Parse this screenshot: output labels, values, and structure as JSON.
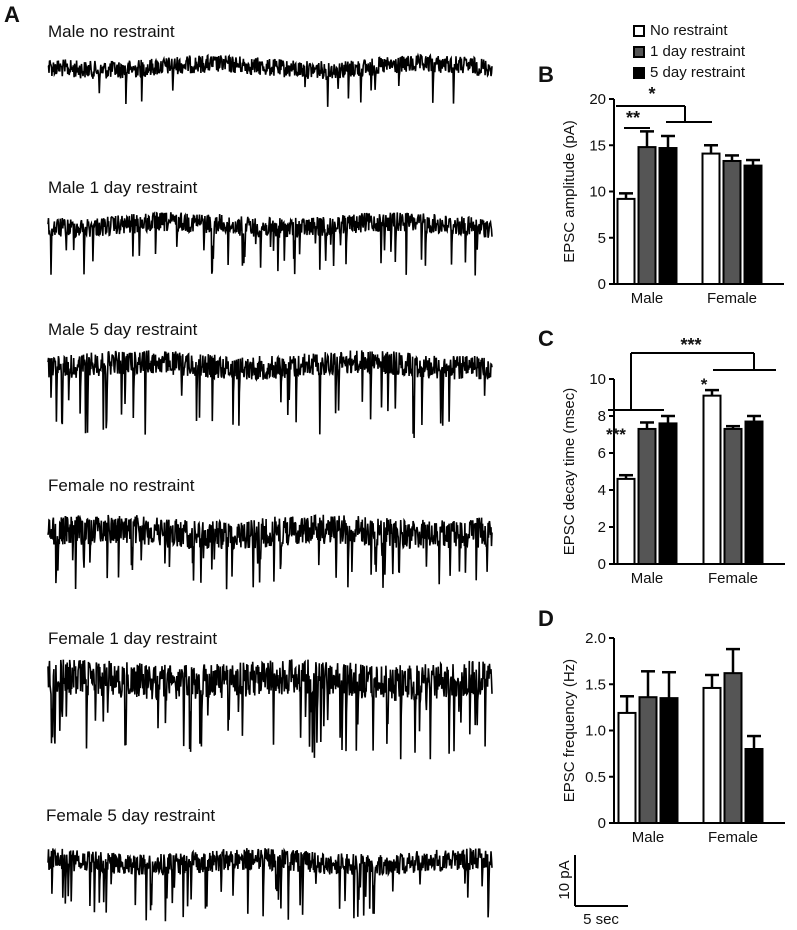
{
  "panels": {
    "a": "A",
    "b": "B",
    "c": "C",
    "d": "D"
  },
  "traces": [
    {
      "label": "Male no restraint"
    },
    {
      "label": "Male 1 day restraint"
    },
    {
      "label": "Male 5 day restraint"
    },
    {
      "label": "Female no restraint"
    },
    {
      "label": "Female 1 day restraint"
    },
    {
      "label": "Female 5 day restraint"
    }
  ],
  "legend": [
    {
      "label": "No restraint",
      "color": "#ffffff"
    },
    {
      "label": "1 day restraint",
      "color": "#555555"
    },
    {
      "label": "5 day restraint",
      "color": "#000000"
    }
  ],
  "scale_bar": {
    "y_label": "10 pA",
    "x_label": "5 sec"
  },
  "chart_data": [
    {
      "panel": "B",
      "type": "bar",
      "categories": [
        "Male",
        "Female"
      ],
      "ylabel": "EPSC amplitude (pA)",
      "ylim": [
        0,
        20
      ],
      "yticks": [
        0,
        5,
        10,
        15,
        20
      ],
      "series": [
        {
          "name": "No restraint",
          "values": [
            9.2,
            14.1
          ],
          "errors": [
            0.6,
            0.9
          ]
        },
        {
          "name": "1 day restraint",
          "values": [
            14.8,
            13.3
          ],
          "errors": [
            1.7,
            0.6
          ]
        },
        {
          "name": "5 day restraint",
          "values": [
            14.7,
            12.8
          ],
          "errors": [
            1.3,
            0.6
          ]
        }
      ],
      "annotations": [
        "*",
        "**"
      ]
    },
    {
      "panel": "C",
      "type": "bar",
      "categories": [
        "Male",
        "Female"
      ],
      "ylabel": "EPSC decay time (msec)",
      "ylim": [
        0,
        10
      ],
      "yticks": [
        0,
        2,
        4,
        6,
        8,
        10
      ],
      "series": [
        {
          "name": "No restraint",
          "values": [
            4.6,
            9.1
          ],
          "errors": [
            0.2,
            0.3
          ]
        },
        {
          "name": "1 day restraint",
          "values": [
            7.3,
            7.3
          ],
          "errors": [
            0.35,
            0.15
          ]
        },
        {
          "name": "5 day restraint",
          "values": [
            7.6,
            7.7
          ],
          "errors": [
            0.4,
            0.3
          ]
        }
      ],
      "annotations": [
        "***",
        "***",
        "*"
      ]
    },
    {
      "panel": "D",
      "type": "bar",
      "categories": [
        "Male",
        "Female"
      ],
      "ylabel": "EPSC frequency (Hz)",
      "ylim": [
        0,
        2.0
      ],
      "yticks": [
        "0",
        "0.5",
        "1.0",
        "1.5",
        "2.0"
      ],
      "series": [
        {
          "name": "No restraint",
          "values": [
            1.19,
            1.46
          ],
          "errors": [
            0.18,
            0.14
          ]
        },
        {
          "name": "1 day restraint",
          "values": [
            1.36,
            1.62
          ],
          "errors": [
            0.28,
            0.26
          ]
        },
        {
          "name": "5 day restraint",
          "values": [
            1.35,
            0.8
          ],
          "errors": [
            0.28,
            0.14
          ]
        }
      ],
      "annotations": []
    }
  ]
}
